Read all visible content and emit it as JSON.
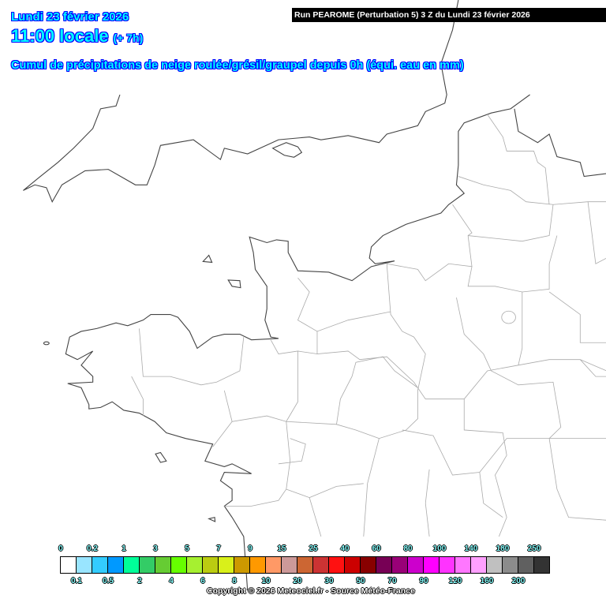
{
  "header": {
    "date": "Lundi 23 février 2026",
    "hour": "11:00 locale",
    "offset": "(+ 7h)",
    "subtitle": "Cumul de précipitations de neige roulée/grésil/graupel depuis 0h (équi. eau en mm)",
    "run": "Run PEAROME (Perturbation 5) 3 Z du Lundi 23 février 2026"
  },
  "legend": {
    "labels": [
      "0",
      "0.1",
      "0.2",
      "0.5",
      "1",
      "2",
      "3",
      "4",
      "5",
      "6",
      "7",
      "8",
      "9",
      "10",
      "15",
      "20",
      "25",
      "30",
      "40",
      "50",
      "60",
      "70",
      "80",
      "90",
      "100",
      "120",
      "140",
      "160",
      "180",
      "200",
      "250"
    ],
    "colors": [
      "#ffffff",
      "#99e5ff",
      "#33ccff",
      "#0099ff",
      "#00ff99",
      "#33cc66",
      "#66cc33",
      "#66ff00",
      "#a6f030",
      "#bbcc11",
      "#d9f01a",
      "#cc9900",
      "#ff9900",
      "#ff9966",
      "#cc9999",
      "#cc6633",
      "#cc3333",
      "#ff1111",
      "#cc0000",
      "#880000",
      "#770055",
      "#990077",
      "#cc00cc",
      "#ff00ff",
      "#ff33ff",
      "#ff77ff",
      "#ffa0ff",
      "#c0c0c0",
      "#8c8c8c",
      "#606060",
      "#333333"
    ]
  },
  "copyright": "Copyright © 2026 Meteociel.fr - Source Météo-France"
}
